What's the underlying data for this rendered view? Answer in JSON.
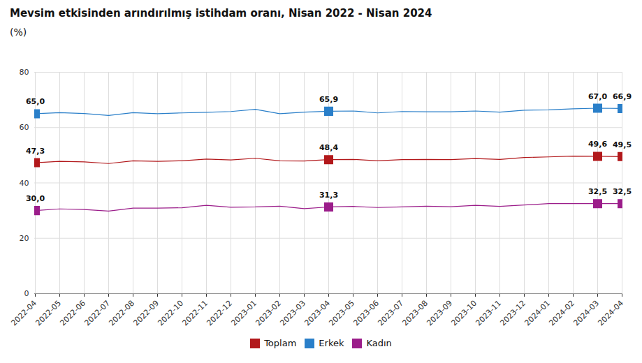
{
  "chart_data": {
    "type": "line",
    "title": "Mevsim etkisinden arındırılmış istihdam oranı, Nisan 2022 - Nisan 2024",
    "subtitle": "(%)",
    "x": [
      "2022-04",
      "2022-05",
      "2022-06",
      "2022-07",
      "2022-08",
      "2022-09",
      "2022-10",
      "2022-11",
      "2022-12",
      "2023-01",
      "2023-02",
      "2023-03",
      "2023-04",
      "2023-05",
      "2023-06",
      "2023-07",
      "2023-08",
      "2023-09",
      "2023-10",
      "2023-11",
      "2023-12",
      "2024-01",
      "2024-02",
      "2024-03",
      "2024-04"
    ],
    "series": [
      {
        "name": "Toplam",
        "color": "#b2181b",
        "marker": "square",
        "values": [
          47.3,
          47.8,
          47.6,
          47.0,
          48.0,
          47.8,
          48.0,
          48.6,
          48.3,
          48.9,
          48.0,
          47.9,
          48.4,
          48.5,
          48.0,
          48.4,
          48.5,
          48.4,
          48.8,
          48.5,
          49.2,
          49.4,
          49.7,
          49.6,
          49.5
        ],
        "value_labels": [
          "47,3",
          null,
          null,
          null,
          null,
          null,
          null,
          null,
          null,
          null,
          null,
          null,
          "48,4",
          null,
          null,
          null,
          null,
          null,
          null,
          null,
          null,
          null,
          null,
          "49,6",
          "49,5"
        ]
      },
      {
        "name": "Erkek",
        "color": "#2a7fc9",
        "marker": "square",
        "values": [
          65.0,
          65.4,
          65.1,
          64.4,
          65.4,
          65.0,
          65.3,
          65.5,
          65.8,
          66.6,
          65.0,
          65.6,
          65.9,
          66.0,
          65.3,
          65.8,
          65.7,
          65.7,
          66.0,
          65.6,
          66.3,
          66.4,
          66.8,
          67.0,
          66.9
        ],
        "value_labels": [
          "65,0",
          null,
          null,
          null,
          null,
          null,
          null,
          null,
          null,
          null,
          null,
          null,
          "65,9",
          null,
          null,
          null,
          null,
          null,
          null,
          null,
          null,
          null,
          null,
          "67,0",
          "66,9"
        ]
      },
      {
        "name": "Kadın",
        "color": "#9b1d8a",
        "marker": "square",
        "values": [
          30.0,
          30.6,
          30.4,
          29.8,
          30.9,
          30.9,
          31.0,
          31.9,
          31.2,
          31.3,
          31.6,
          30.7,
          31.3,
          31.5,
          31.1,
          31.3,
          31.6,
          31.4,
          31.9,
          31.5,
          32.0,
          32.5,
          32.5,
          32.5,
          32.5
        ],
        "value_labels": [
          "30,0",
          null,
          null,
          null,
          null,
          null,
          null,
          null,
          null,
          null,
          null,
          null,
          "31,3",
          null,
          null,
          null,
          null,
          null,
          null,
          null,
          null,
          null,
          null,
          "32,5",
          "32,5"
        ]
      }
    ],
    "ylim": [
      0,
      80
    ],
    "yticks": [
      0,
      20,
      40,
      60,
      80
    ],
    "grid": true,
    "legend": "bottom",
    "data_labels": true
  }
}
